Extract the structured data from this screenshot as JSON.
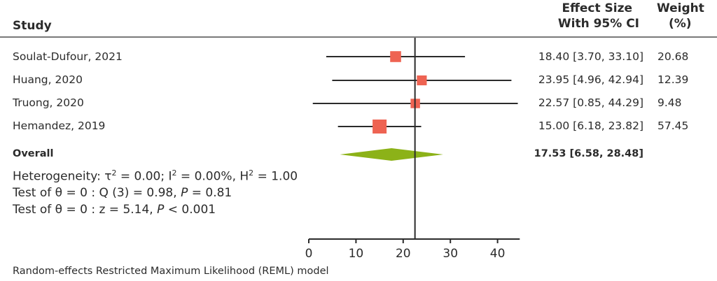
{
  "header": {
    "study": "Study",
    "effect_line1": "Effect Size",
    "effect_line2": "With 95% CI",
    "weight_line1": "Weight",
    "weight_line2": "(%)"
  },
  "studies": [
    {
      "name": "Soulat-Dufour, 2021",
      "ci_text": "18.40 [3.70, 33.10]",
      "weight": "20.68"
    },
    {
      "name": "Huang, 2020",
      "ci_text": "23.95 [4.96, 42.94]",
      "weight": "12.39"
    },
    {
      "name": "Truong, 2020",
      "ci_text": "22.57 [0.85, 44.29]",
      "weight": "9.48"
    },
    {
      "name": "Hemandez, 2019",
      "ci_text": "15.00 [6.18, 23.82]",
      "weight": "57.45"
    }
  ],
  "overall": {
    "label": "Overall",
    "ci_text": "17.53 [6.58, 28.48]"
  },
  "stats": {
    "heterogeneity_prefix": "Heterogeneity: τ",
    "tau_sup": "2",
    "heterogeneity_mid1": " = 0.00; I",
    "i_sup": "2",
    "heterogeneity_mid2": " = 0.00%, H",
    "h_sup": "2",
    "heterogeneity_end": " = 1.00",
    "q_prefix": "Test of θ = 0 : Q (3) = 0.98, ",
    "q_p": "P",
    "q_suffix": " = 0.81",
    "z_prefix": "Test of θ = 0 : z = 5.14, ",
    "z_p": "P",
    "z_suffix": " < 0.001"
  },
  "footnote": "Random-effects Restricted Maximum Likelihood (REML) model",
  "colors": {
    "square": "#ee6352",
    "diamond": "#8cb218",
    "line": "#2b2b2b",
    "rule": "#7a7a7a"
  },
  "chart_data": {
    "type": "forest",
    "xlim": [
      0,
      45
    ],
    "xticks": [
      0,
      10,
      20,
      30,
      40
    ],
    "reference_line": 22.5,
    "series": [
      {
        "study": "Soulat-Dufour, 2021",
        "effect": 18.4,
        "lower": 3.7,
        "upper": 33.1,
        "weight": 20.68
      },
      {
        "study": "Huang, 2020",
        "effect": 23.95,
        "lower": 4.96,
        "upper": 42.94,
        "weight": 12.39
      },
      {
        "study": "Truong, 2020",
        "effect": 22.57,
        "lower": 0.85,
        "upper": 44.29,
        "weight": 9.48
      },
      {
        "study": "Hemandez, 2019",
        "effect": 15.0,
        "lower": 6.18,
        "upper": 23.82,
        "weight": 57.45
      }
    ],
    "overall": {
      "effect": 17.53,
      "lower": 6.58,
      "upper": 28.48
    }
  }
}
